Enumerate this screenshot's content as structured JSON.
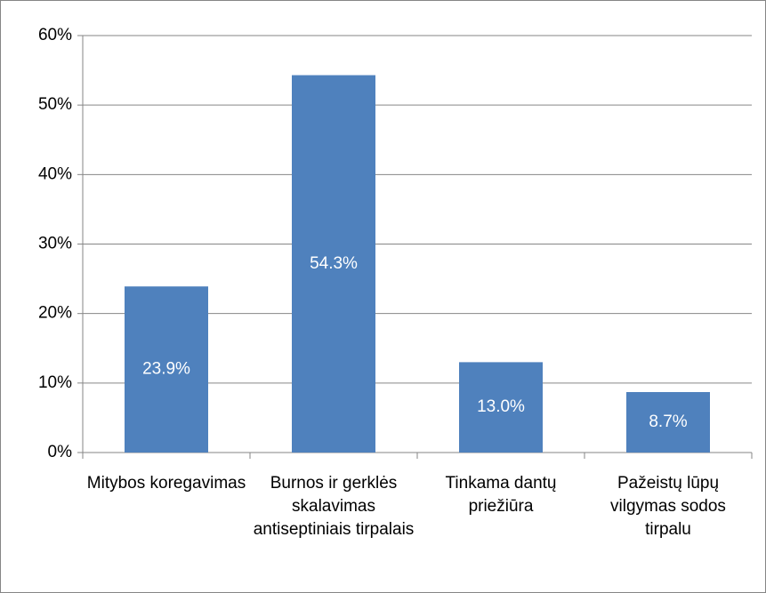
{
  "chart_data": {
    "type": "bar",
    "categories": [
      "Mitybos koregavimas",
      "Burnos ir gerklės skalavimas antiseptiniais tirpalais",
      "Tinkama dantų priežiūra",
      "Pažeistų lūpų vilgymas sodos tirpalu"
    ],
    "values": [
      23.9,
      54.3,
      13.0,
      8.7
    ],
    "value_labels": [
      "23.9%",
      "54.3%",
      "13.0%",
      "8.7%"
    ],
    "color": "#4f81bd",
    "ylim": [
      0,
      60
    ],
    "yticks": [
      {
        "value": 0,
        "label": "0%"
      },
      {
        "value": 10,
        "label": "10%"
      },
      {
        "value": 20,
        "label": "20%"
      },
      {
        "value": 30,
        "label": "30%"
      },
      {
        "value": 40,
        "label": "40%"
      },
      {
        "value": 50,
        "label": "50%"
      },
      {
        "value": 60,
        "label": "60%"
      }
    ],
    "grid": true
  }
}
